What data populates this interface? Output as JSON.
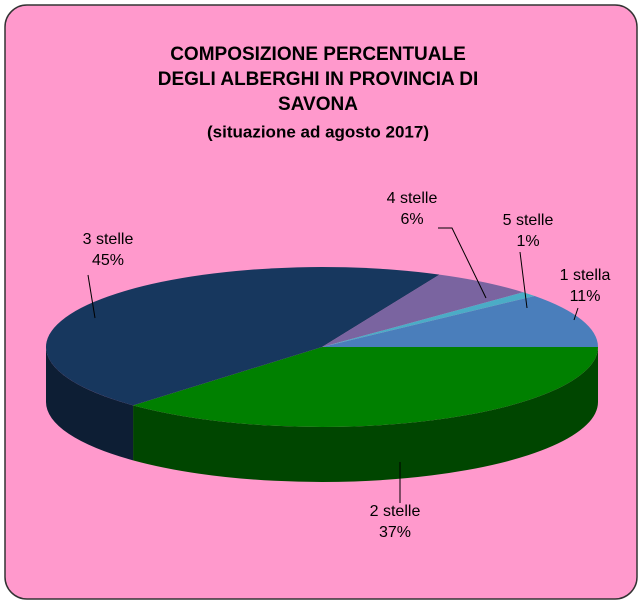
{
  "chart_data": {
    "type": "pie3d",
    "title": [
      "COMPOSIZIONE PERCENTUALE",
      "DEGLI ALBERGHI IN PROVINCIA DI",
      "SAVONA"
    ],
    "subtitle": "(situazione ad agosto 2017)",
    "categories": [
      "1 stella",
      "2 stelle",
      "3 stelle",
      "4 stelle",
      "5 stelle"
    ],
    "values": [
      11,
      37,
      45,
      6,
      1
    ],
    "value_labels": [
      "11%",
      "37%",
      "45%",
      "6%",
      "1%"
    ],
    "colors": [
      "#4a7ebb",
      "#008000",
      "#17375e",
      "#7a64a0",
      "#4bacc6"
    ]
  }
}
